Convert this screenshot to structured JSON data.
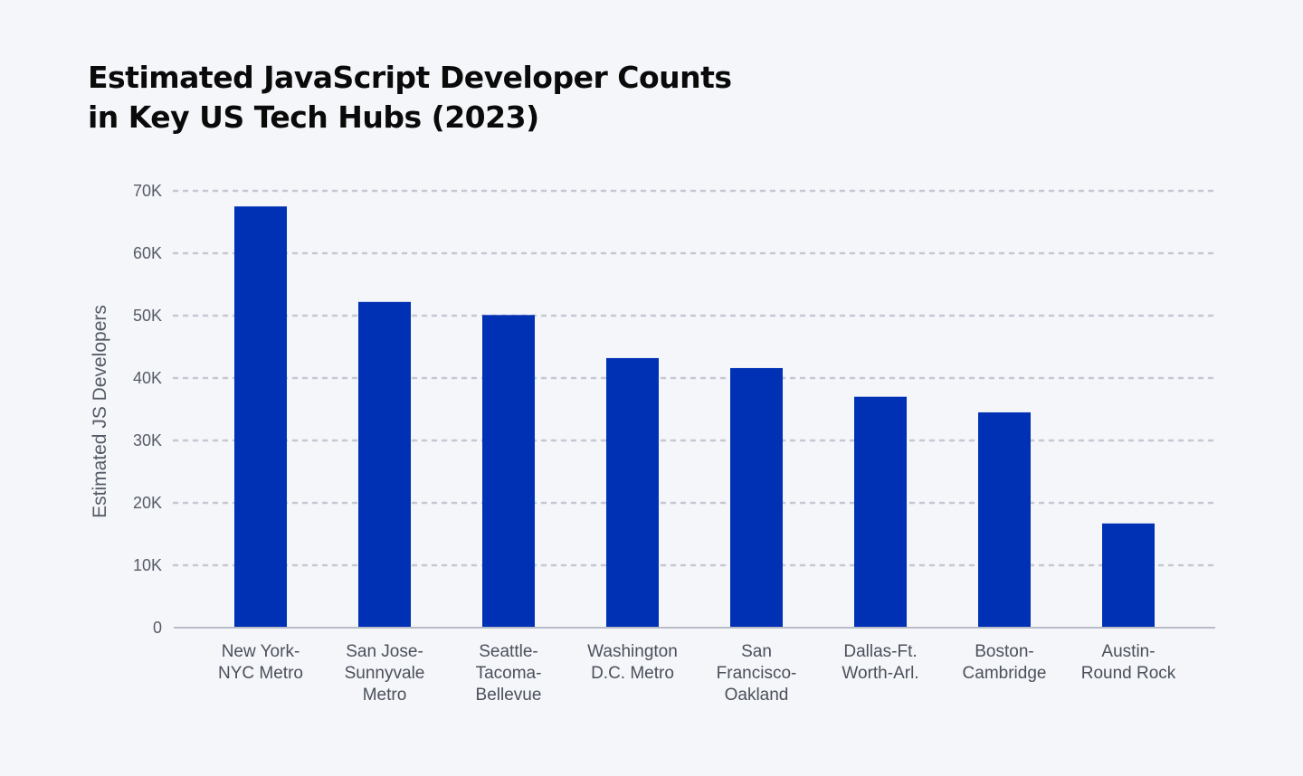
{
  "chart_data": {
    "type": "bar",
    "title_lines": [
      "Estimated JavaScript Developer Counts",
      "in Key US Tech Hubs (2023)"
    ],
    "xlabel": "",
    "ylabel": "Estimated JS Developers",
    "ylim": [
      0,
      70000
    ],
    "yticks": [
      0,
      10000,
      20000,
      30000,
      40000,
      50000,
      60000,
      70000
    ],
    "ytick_labels": [
      "0",
      "10K",
      "20K",
      "30K",
      "40K",
      "50K",
      "60K",
      "70K"
    ],
    "grid": true,
    "categories": [
      [
        "New York-",
        "NYC Metro"
      ],
      [
        "San Jose-",
        "Sunnyvale",
        "Metro"
      ],
      [
        "Seattle-",
        "Tacoma-",
        "Bellevue"
      ],
      [
        "Washington",
        "D.C. Metro"
      ],
      [
        "San",
        "Francisco-",
        "Oakland"
      ],
      [
        "Dallas-Ft.",
        "Worth-Arl."
      ],
      [
        "Boston-",
        "Cambridge"
      ],
      [
        "Austin-",
        "Round Rock"
      ]
    ],
    "values": [
      67500,
      52200,
      50100,
      43200,
      41600,
      37000,
      34500,
      16700
    ],
    "colors": {
      "bar": "#0030b4",
      "grid": "#c5c8d2",
      "axis": "#b8bcc6"
    }
  }
}
